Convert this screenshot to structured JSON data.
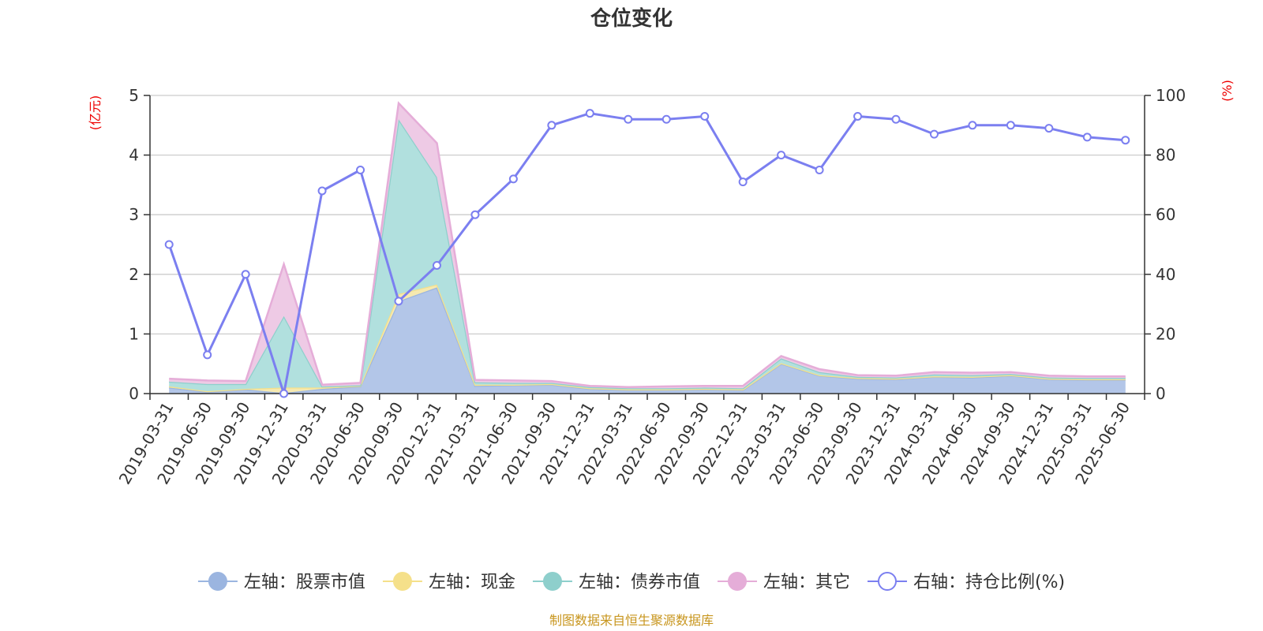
{
  "chart_data": {
    "type": "area",
    "title": "仓位变化",
    "left_unit": "(亿元)",
    "right_unit": "(%)",
    "left_ylim": [
      0,
      5
    ],
    "left_ticks": [
      "0",
      "1",
      "2",
      "3",
      "4",
      "5"
    ],
    "right_ylim": [
      0,
      100
    ],
    "right_ticks": [
      "0",
      "20",
      "40",
      "60",
      "80",
      "100"
    ],
    "grid": true,
    "legend_position": "bottom",
    "categories": [
      "2019-03-31",
      "2019-06-30",
      "2019-09-30",
      "2019-12-31",
      "2020-03-31",
      "2020-06-30",
      "2020-09-30",
      "2020-12-31",
      "2021-03-31",
      "2021-06-30",
      "2021-09-30",
      "2021-12-31",
      "2022-03-31",
      "2022-06-30",
      "2022-09-30",
      "2022-12-31",
      "2023-03-31",
      "2023-06-30",
      "2023-09-30",
      "2023-12-31",
      "2024-03-31",
      "2024-06-30",
      "2024-09-30",
      "2024-12-31",
      "2025-03-31",
      "2025-06-30"
    ],
    "stacked_series": [
      {
        "name": "左轴：股票市值",
        "axis": "left",
        "color": "#9bb5e0",
        "fill": "#b3c6e8",
        "values": [
          0.1,
          0.03,
          0.07,
          0.01,
          0.08,
          0.12,
          1.55,
          1.78,
          0.13,
          0.14,
          0.15,
          0.08,
          0.06,
          0.06,
          0.07,
          0.06,
          0.5,
          0.3,
          0.25,
          0.24,
          0.28,
          0.27,
          0.3,
          0.24,
          0.23,
          0.23
        ]
      },
      {
        "name": "左轴：现金",
        "axis": "left",
        "color": "#f5e08a",
        "fill": "#f6e9b0",
        "values": [
          0.02,
          0.01,
          0.01,
          0.09,
          0.02,
          0.01,
          0.12,
          0.05,
          0.02,
          0.01,
          0.01,
          0.01,
          0.01,
          0.01,
          0.01,
          0.01,
          0.01,
          0.01,
          0.01,
          0.01,
          0.01,
          0.01,
          0.01,
          0.01,
          0.01,
          0.01
        ]
      },
      {
        "name": "左轴：债券市值",
        "axis": "left",
        "color": "#8ecfcc",
        "fill": "#b1e0de",
        "values": [
          0.08,
          0.12,
          0.08,
          1.2,
          0.02,
          0.01,
          2.93,
          1.8,
          0.04,
          0.03,
          0.02,
          0.02,
          0.02,
          0.02,
          0.02,
          0.02,
          0.08,
          0.05,
          0.02,
          0.02,
          0.03,
          0.03,
          0.02,
          0.02,
          0.02,
          0.02
        ]
      },
      {
        "name": "左轴：其它",
        "axis": "left",
        "color": "#e5add8",
        "fill": "#eecae5",
        "values": [
          0.05,
          0.06,
          0.05,
          0.87,
          0.03,
          0.04,
          0.27,
          0.57,
          0.04,
          0.04,
          0.03,
          0.02,
          0.02,
          0.03,
          0.03,
          0.04,
          0.04,
          0.05,
          0.03,
          0.03,
          0.04,
          0.04,
          0.03,
          0.03,
          0.03,
          0.03
        ]
      }
    ],
    "line_series": {
      "name": "右轴：持仓比例(%)",
      "axis": "right",
      "color": "#7b7ff0",
      "values": [
        50,
        13,
        40,
        0,
        68,
        75,
        31,
        43,
        60,
        72,
        90,
        94,
        92,
        92,
        93,
        71,
        80,
        75,
        93,
        92,
        87,
        90,
        90,
        89,
        86,
        85
      ]
    }
  },
  "source_text": "制图数据来自恒生聚源数据库"
}
